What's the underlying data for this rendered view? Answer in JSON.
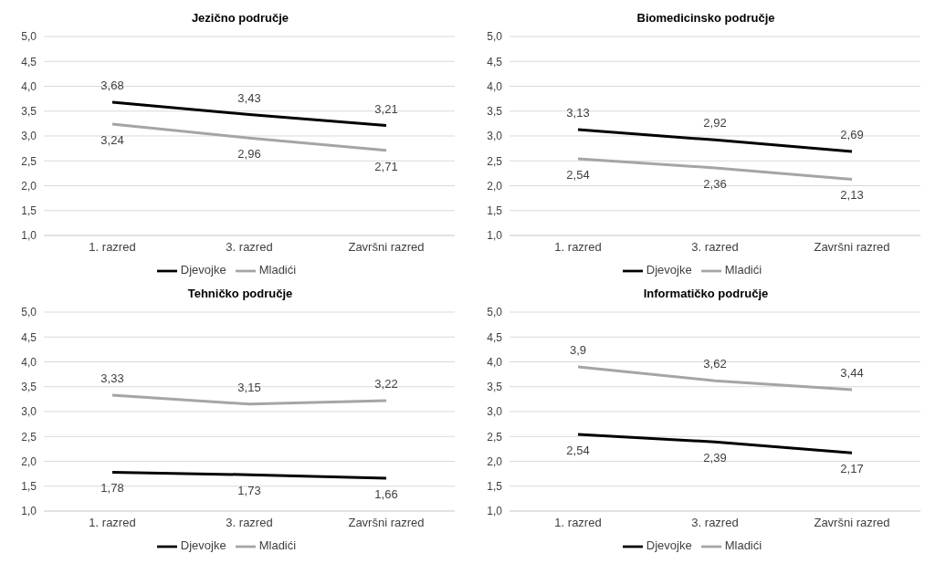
{
  "chart_data": [
    {
      "type": "line",
      "title": "Jezično područje",
      "categories": [
        "1. razred",
        "3. razred",
        "Završni razred"
      ],
      "ylim": [
        1,
        5
      ],
      "yticks": [
        {
          "value": 1,
          "label": "1,0"
        },
        {
          "value": 1.5,
          "label": "1,5"
        },
        {
          "value": 2,
          "label": "2,0"
        },
        {
          "value": 2.5,
          "label": "2,5"
        },
        {
          "value": 3,
          "label": "3,0"
        },
        {
          "value": 3.5,
          "label": "3,5"
        },
        {
          "value": 4,
          "label": "4,0"
        },
        {
          "value": 4.5,
          "label": "4,5"
        },
        {
          "value": 5,
          "label": "5,0"
        }
      ],
      "grid": "y",
      "legend": "bottom",
      "marker": "none",
      "line_style": "solid",
      "series": [
        {
          "name": "Djevojke",
          "color": "#000000",
          "values": [
            3.68,
            3.43,
            3.21
          ],
          "value_labels": [
            "3,68",
            "3,43",
            "3,21"
          ]
        },
        {
          "name": "Mladići",
          "color": "#a5a5a5",
          "values": [
            3.24,
            2.96,
            2.71
          ],
          "value_labels": [
            "3,24",
            "2,96",
            "2,71"
          ]
        }
      ]
    },
    {
      "type": "line",
      "title": "Biomedicinsko područje",
      "categories": [
        "1. razred",
        "3. razred",
        "Završni razred"
      ],
      "ylim": [
        1,
        5
      ],
      "yticks": [
        {
          "value": 1,
          "label": "1,0"
        },
        {
          "value": 1.5,
          "label": "1,5"
        },
        {
          "value": 2,
          "label": "2,0"
        },
        {
          "value": 2.5,
          "label": "2,5"
        },
        {
          "value": 3,
          "label": "3,0"
        },
        {
          "value": 3.5,
          "label": "3,5"
        },
        {
          "value": 4,
          "label": "4,0"
        },
        {
          "value": 4.5,
          "label": "4,5"
        },
        {
          "value": 5,
          "label": "5,0"
        }
      ],
      "grid": "y",
      "legend": "bottom",
      "marker": "none",
      "line_style": "solid",
      "series": [
        {
          "name": "Djevojke",
          "color": "#000000",
          "values": [
            3.13,
            2.92,
            2.69
          ],
          "value_labels": [
            "3,13",
            "2,92",
            "2,69"
          ]
        },
        {
          "name": "Mladići",
          "color": "#a5a5a5",
          "values": [
            2.54,
            2.36,
            2.13
          ],
          "value_labels": [
            "2,54",
            "2,36",
            "2,13"
          ]
        }
      ]
    },
    {
      "type": "line",
      "title": "Tehničko područje",
      "categories": [
        "1. razred",
        "3. razred",
        "Završni razred"
      ],
      "ylim": [
        1,
        5
      ],
      "yticks": [
        {
          "value": 1,
          "label": "1,0"
        },
        {
          "value": 1.5,
          "label": "1,5"
        },
        {
          "value": 2,
          "label": "2,0"
        },
        {
          "value": 2.5,
          "label": "2,5"
        },
        {
          "value": 3,
          "label": "3,0"
        },
        {
          "value": 3.5,
          "label": "3,5"
        },
        {
          "value": 4,
          "label": "4,0"
        },
        {
          "value": 4.5,
          "label": "4,5"
        },
        {
          "value": 5,
          "label": "5,0"
        }
      ],
      "grid": "y",
      "legend": "bottom",
      "marker": "none",
      "line_style": "solid",
      "series": [
        {
          "name": "Djevojke",
          "color": "#000000",
          "values": [
            1.78,
            1.73,
            1.66
          ],
          "value_labels": [
            "1,78",
            "1,73",
            "1,66"
          ]
        },
        {
          "name": "Mladići",
          "color": "#a5a5a5",
          "values": [
            3.33,
            3.15,
            3.22
          ],
          "value_labels": [
            "3,33",
            "3,15",
            "3,22"
          ]
        }
      ]
    },
    {
      "type": "line",
      "title": "Informatičko područje",
      "categories": [
        "1. razred",
        "3. razred",
        "Završni razred"
      ],
      "ylim": [
        1,
        5
      ],
      "yticks": [
        {
          "value": 1,
          "label": "1,0"
        },
        {
          "value": 1.5,
          "label": "1,5"
        },
        {
          "value": 2,
          "label": "2,0"
        },
        {
          "value": 2.5,
          "label": "2,5"
        },
        {
          "value": 3,
          "label": "3,0"
        },
        {
          "value": 3.5,
          "label": "3,5"
        },
        {
          "value": 4,
          "label": "4,0"
        },
        {
          "value": 4.5,
          "label": "4,5"
        },
        {
          "value": 5,
          "label": "5,0"
        }
      ],
      "grid": "y",
      "legend": "bottom",
      "marker": "none",
      "line_style": "solid",
      "series": [
        {
          "name": "Djevojke",
          "color": "#000000",
          "values": [
            2.54,
            2.39,
            2.17
          ],
          "value_labels": [
            "2,54",
            "2,39",
            "2,17"
          ]
        },
        {
          "name": "Mladići",
          "color": "#a5a5a5",
          "values": [
            3.9,
            3.62,
            3.44
          ],
          "value_labels": [
            "3,9",
            "3,62",
            "3,44"
          ]
        }
      ]
    }
  ]
}
